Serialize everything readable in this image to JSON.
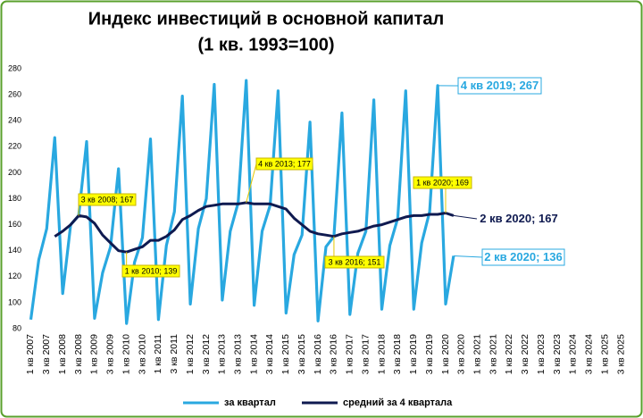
{
  "chart_data": {
    "type": "line",
    "title": "Индекс инвестиций в основной капитал",
    "subtitle": "(1 кв. 1993=100)",
    "categories": [
      "1 кв 2007",
      null,
      "3 кв 2007",
      null,
      "1 кв 2008",
      null,
      "3 кв 2008",
      null,
      "1 кв 2009",
      null,
      "3 кв 2009",
      null,
      "1 кв 2010",
      null,
      "3 кв 2010",
      null,
      "1 кв 2011",
      null,
      "3 кв 2011",
      null,
      "1 кв 2012",
      null,
      "3 кв 2012",
      null,
      "1 кв 2013",
      null,
      "3 кв 2013",
      null,
      "1 кв 2014",
      null,
      "3 кв 2014",
      null,
      "1 кв 2015",
      null,
      "3 кв 2015",
      null,
      "1 кв 2016",
      null,
      "3 кв 2016",
      null,
      "1 кв 2017",
      null,
      "3 кв 2017",
      null,
      "1 кв 2018",
      null,
      "3 кв 2018",
      null,
      "1 кв 2019",
      null,
      "3 кв 2019",
      null,
      "1 кв 2020",
      null,
      "3 кв 2020",
      null,
      "1 кв 2021",
      null,
      "3 кв 2021",
      null,
      "1 кв 2022",
      null,
      "3 кв 2022",
      null,
      "1 кв 2023",
      null,
      "3 кв 2023",
      null,
      "1 кв 2024",
      null,
      "3 кв 2024",
      null,
      "1 кв 2025",
      null,
      "3 кв 2025"
    ],
    "series": [
      {
        "name": "за квартал",
        "color": "#29a8e0",
        "values": [
          87,
          133,
          157,
          227,
          107,
          160,
          167,
          224,
          88,
          123,
          143,
          203,
          84,
          131,
          150,
          226,
          87,
          144,
          170,
          259,
          99,
          157,
          180,
          268,
          102,
          155,
          177,
          271,
          98,
          155,
          175,
          263,
          92,
          137,
          152,
          239,
          86,
          143,
          151,
          246,
          91,
          138,
          155,
          256,
          95,
          144,
          165,
          263,
          95,
          146,
          170,
          267,
          99,
          136,
          null,
          null,
          null,
          null,
          null,
          null,
          null,
          null,
          null,
          null,
          null,
          null,
          null,
          null,
          null,
          null,
          null,
          null,
          null,
          null,
          null
        ]
      },
      {
        "name": "средний за 4 квартала",
        "color": "#0f1a50",
        "values": [
          null,
          null,
          null,
          151,
          155,
          160,
          167,
          166,
          161,
          152,
          146,
          140,
          139,
          141,
          143,
          148,
          148,
          151,
          156,
          164,
          167,
          171,
          174,
          175,
          176,
          176,
          176,
          177,
          176,
          176,
          176,
          174,
          172,
          165,
          160,
          155,
          153,
          152,
          151,
          153,
          154,
          155,
          157,
          159,
          160,
          162,
          164,
          166,
          167,
          167,
          168,
          168,
          169,
          167,
          null,
          null,
          null,
          null,
          null,
          null,
          null,
          null,
          null,
          null,
          null,
          null,
          null,
          null,
          null,
          null,
          null,
          null,
          null,
          null,
          null
        ]
      }
    ],
    "ylim": [
      80,
      280
    ],
    "yticks": [
      80,
      100,
      120,
      140,
      160,
      180,
      200,
      220,
      240,
      260,
      280
    ],
    "grid": false,
    "legend": "bottom",
    "annotations": [
      "3 кв 2008; 167",
      "1 кв 2010; 139",
      "4 кв 2013; 177",
      "3 кв 2016; 151",
      "1 кв 2020; 169",
      "4 кв 2019; 267",
      "2 кв 2020; 167",
      "2 кв 2020; 136"
    ]
  }
}
